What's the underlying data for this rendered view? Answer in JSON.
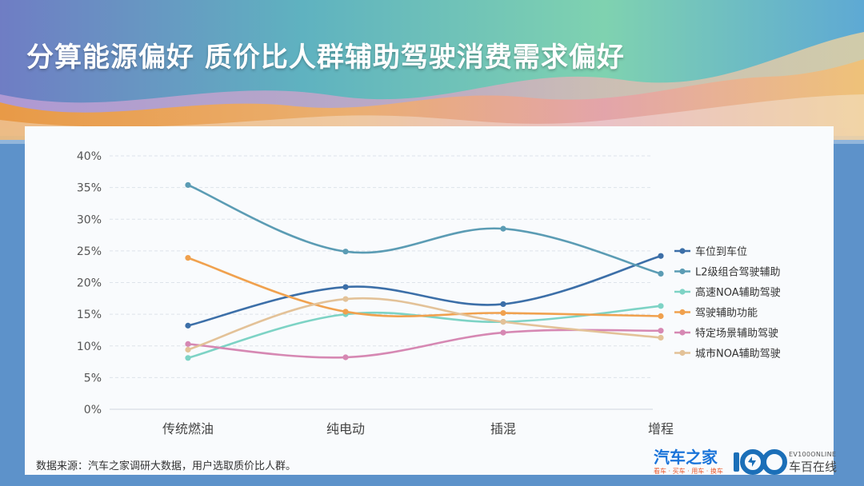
{
  "title": "分算能源偏好 质价比人群辅助驾驶消费需求偏好",
  "source": "数据来源：汽车之家调研大数据，用户选取质价比人群。",
  "logos": {
    "autohome": "汽车之家",
    "autohome_tagline": "看车 · 买车 · 用车 · 换车",
    "ev100_en": "EV100ONLINE",
    "ev100_cn": "车百在线"
  },
  "chart_data": {
    "type": "line",
    "categories": [
      "传统燃油",
      "纯电动",
      "插混",
      "增程"
    ],
    "ylim": [
      0,
      40
    ],
    "yticks": [
      "0%",
      "5%",
      "10%",
      "15%",
      "20%",
      "25%",
      "30%",
      "35%",
      "40%"
    ],
    "grid": true,
    "legend_position": "right",
    "series": [
      {
        "name": "车位到车位",
        "color": "#3c6fa8",
        "values": [
          13.2,
          19.3,
          16.6,
          24.2
        ]
      },
      {
        "name": "L2级组合驾驶辅助",
        "color": "#5b9cb4",
        "values": [
          35.4,
          24.9,
          28.5,
          21.4
        ]
      },
      {
        "name": "高速NOA辅助驾驶",
        "color": "#7dd3c5",
        "values": [
          8.1,
          15.0,
          13.8,
          16.3
        ]
      },
      {
        "name": "驾驶辅助功能",
        "color": "#f0a14e",
        "values": [
          23.9,
          15.4,
          15.2,
          14.7
        ]
      },
      {
        "name": "特定场景辅助驾驶",
        "color": "#d688b3",
        "values": [
          10.3,
          8.2,
          12.1,
          12.4
        ]
      },
      {
        "name": "城市NOA辅助驾驶",
        "color": "#e3c298",
        "values": [
          9.4,
          17.4,
          13.8,
          11.3
        ]
      }
    ]
  }
}
